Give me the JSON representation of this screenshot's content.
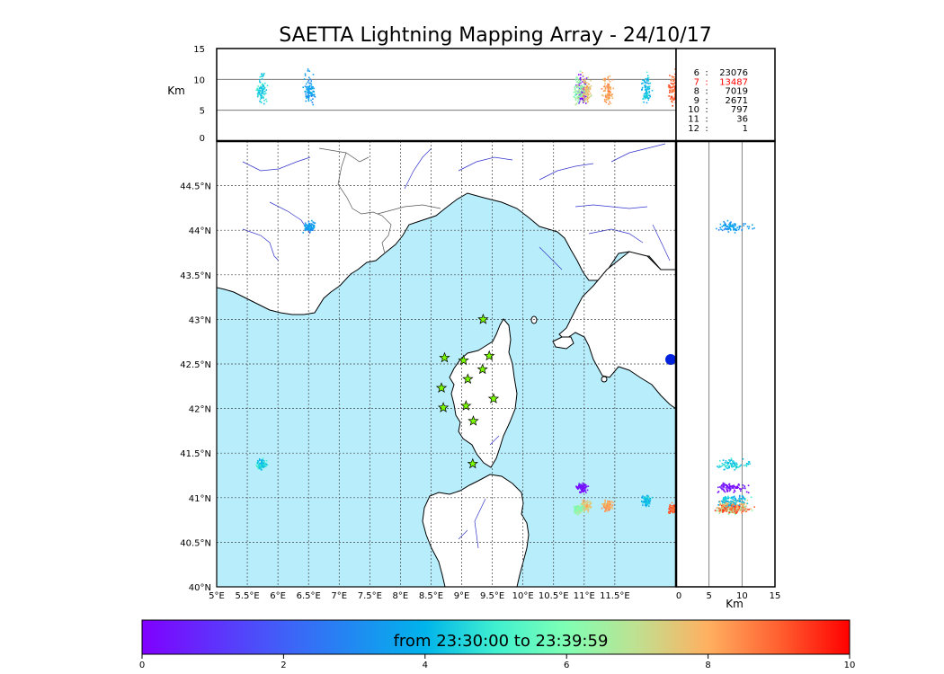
{
  "chart_data": {
    "type": "scatter",
    "title": "SAETTA Lightning Mapping Array - 24/10/17",
    "map": {
      "lon_range": [
        5,
        12.5
      ],
      "lat_range": [
        40,
        45
      ],
      "lon_ticks": [
        "5°E",
        "5.5°E",
        "6°E",
        "6.5°E",
        "7°E",
        "7.5°E",
        "8°E",
        "8.5°E",
        "9°E",
        "9.5°E",
        "10°E",
        "10.5°E",
        "11°E",
        "11.5°E"
      ],
      "lat_ticks": [
        "40°N",
        "40.5°N",
        "41°N",
        "41.5°N",
        "42°N",
        "42.5°N",
        "43°N",
        "43.5°N",
        "44°N",
        "44.5°N"
      ],
      "grid": true,
      "sea_color": "#b8eefc",
      "station_color": "#7cfc00",
      "stations": [
        {
          "lon": 9.35,
          "lat": 43.0
        },
        {
          "lon": 8.72,
          "lat": 42.57
        },
        {
          "lon": 9.03,
          "lat": 42.54
        },
        {
          "lon": 9.45,
          "lat": 42.59
        },
        {
          "lon": 9.34,
          "lat": 42.44
        },
        {
          "lon": 9.1,
          "lat": 42.33
        },
        {
          "lon": 8.67,
          "lat": 42.23
        },
        {
          "lon": 9.52,
          "lat": 42.11
        },
        {
          "lon": 8.7,
          "lat": 42.01
        },
        {
          "lon": 9.07,
          "lat": 42.03
        },
        {
          "lon": 9.19,
          "lat": 41.86
        },
        {
          "lon": 9.18,
          "lat": 41.38
        }
      ]
    },
    "lightning_clusters": [
      {
        "lon": 6.5,
        "lat": 44.05,
        "t": 3.4
      },
      {
        "lon": 5.72,
        "lat": 41.38,
        "t": 4.5
      },
      {
        "lon": 10.95,
        "lat": 41.12,
        "t": 0.3
      },
      {
        "lon": 11.02,
        "lat": 40.92,
        "t": 7.5
      },
      {
        "lon": 11.38,
        "lat": 40.92,
        "t": 8.2
      },
      {
        "lon": 10.9,
        "lat": 40.88,
        "t": 6.3
      },
      {
        "lon": 12.45,
        "lat": 40.88,
        "t": 9.0
      },
      {
        "lon": 12.0,
        "lat": 40.98,
        "t": 4.2
      }
    ],
    "top_panel": {
      "ylabel": "Km",
      "yticks": [
        "0",
        "5",
        "10",
        "15"
      ],
      "ylim": [
        0,
        15
      ],
      "hlines": [
        5,
        10
      ]
    },
    "right_panel": {
      "xlabel": "Km",
      "xticks": [
        "0",
        "5",
        "10",
        "15"
      ],
      "xlim": [
        0,
        15
      ],
      "vlines": [
        5,
        10
      ]
    },
    "counts": [
      {
        "label": "6",
        "value": "23076",
        "highlight": false
      },
      {
        "label": "7",
        "value": "13487",
        "highlight": true
      },
      {
        "label": "8",
        "value": "7019",
        "highlight": false
      },
      {
        "label": "9",
        "value": "2671",
        "highlight": false
      },
      {
        "label": "10",
        "value": "797",
        "highlight": false
      },
      {
        "label": "11",
        "value": "36",
        "highlight": false
      },
      {
        "label": "12",
        "value": "1",
        "highlight": false
      }
    ],
    "colorbar": {
      "label": "from 23:30:00 to 23:39:59",
      "range": [
        0,
        10
      ],
      "ticks": [
        "0",
        "2",
        "4",
        "6",
        "8",
        "10"
      ]
    },
    "colors": {
      "highlight": "#ff0000",
      "land_border": "#000000",
      "rivers": "#3333cc"
    }
  }
}
